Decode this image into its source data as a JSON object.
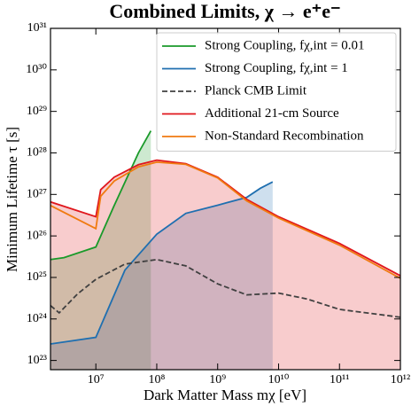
{
  "chart_data": {
    "type": "line",
    "title": "Combined Limits, χ → e⁺e⁻",
    "xlabel": "Dark Matter Mass mχ [eV]",
    "ylabel": "Minimum Lifetime τ [s]",
    "xscale": "log",
    "yscale": "log",
    "xlim": [
      1800000,
      1000000000000
    ],
    "ylim": [
      6e+22,
      1e+31
    ],
    "xticks": [
      {
        "value": 10000000,
        "label": "10⁷"
      },
      {
        "value": 100000000,
        "label": "10⁸"
      },
      {
        "value": 1000000000,
        "label": "10⁹"
      },
      {
        "value": 10000000000,
        "label": "10¹⁰"
      },
      {
        "value": 100000000000,
        "label": "10¹¹"
      },
      {
        "value": 1000000000000,
        "label": "10¹²"
      }
    ],
    "yticks": [
      {
        "value": 1e+23,
        "label": "10²³"
      },
      {
        "value": 1e+24,
        "label": "10²⁴"
      },
      {
        "value": 1e+25,
        "label": "10²⁵"
      },
      {
        "value": 1e+26,
        "label": "10²⁶"
      },
      {
        "value": 1e+27,
        "label": "10²⁷"
      },
      {
        "value": 1e+28,
        "label": "10²⁸"
      },
      {
        "value": 1e+29,
        "label": "10²⁹"
      },
      {
        "value": 1e+30,
        "label": "10³⁰"
      },
      {
        "value": 1e+31,
        "label": "10³¹"
      }
    ],
    "legend": "upper right",
    "series": [
      {
        "name": "Strong Coupling, fχ,int = 0.01",
        "color": "#1a9a2a",
        "fill": true,
        "linestyle": "solid",
        "x": [
          1800000,
          3000000,
          10000000,
          20000000,
          50000000,
          80000000
        ],
        "values": [
          2.7e+25,
          3e+25,
          5.4e+25,
          5.4e+26,
          1e+28,
          3.4e+28
        ]
      },
      {
        "name": "Strong Coupling, fχ,int = 1",
        "color": "#1f6fb0",
        "fill": true,
        "linestyle": "solid",
        "x": [
          1800000,
          10000000,
          30000000,
          100000000,
          300000000,
          1000000000,
          3000000000,
          5000000000,
          8000000000
        ],
        "values": [
          2.5e+23,
          3.6e+23,
          1.5e+25,
          1.1e+26,
          3.5e+26,
          5.5e+26,
          8.5e+26,
          1.4e+27,
          2e+27
        ]
      },
      {
        "name": "Planck CMB Limit",
        "color": "#404040",
        "fill": false,
        "linestyle": "dashed",
        "x": [
          1800000,
          2500000,
          5000000,
          10000000,
          30000000,
          100000000,
          300000000,
          1000000000,
          3000000000,
          10000000000,
          30000000000,
          100000000000,
          1000000000000
        ],
        "values": [
          2.1e+24,
          1.4e+24,
          4e+24,
          9e+24,
          2.1e+25,
          2.7e+25,
          1.9e+25,
          7e+24,
          3.8e+24,
          4.2e+24,
          3e+24,
          1.7e+24,
          1.1e+24
        ]
      },
      {
        "name": "Additional 21-cm Source",
        "color": "#e0161c",
        "fill": true,
        "linestyle": "solid",
        "x": [
          1800000,
          10000000,
          12000000,
          20000000,
          50000000,
          100000000,
          300000000,
          1000000000,
          3000000000,
          10000000000,
          100000000000,
          1000000000000
        ],
        "values": [
          6.6e+26,
          2.9e+26,
          1.3e+27,
          2.6e+27,
          5.2e+27,
          6.7e+27,
          5.5e+27,
          2.6e+27,
          7.6e+26,
          2.9e+26,
          6.6e+25,
          1.1e+25
        ]
      },
      {
        "name": "Non-Standard Recombination",
        "color": "#f07a10",
        "fill": false,
        "linestyle": "solid",
        "x": [
          1800000,
          10000000,
          12000000,
          20000000,
          50000000,
          100000000,
          300000000,
          1000000000,
          3000000000,
          10000000000,
          100000000000,
          1000000000000
        ],
        "values": [
          5.4e+26,
          1.5e+26,
          9e+26,
          2.1e+27,
          4.6e+27,
          6e+27,
          5.3e+27,
          2.5e+27,
          7e+26,
          2.7e+26,
          6e+25,
          9.5e+24
        ]
      }
    ]
  }
}
